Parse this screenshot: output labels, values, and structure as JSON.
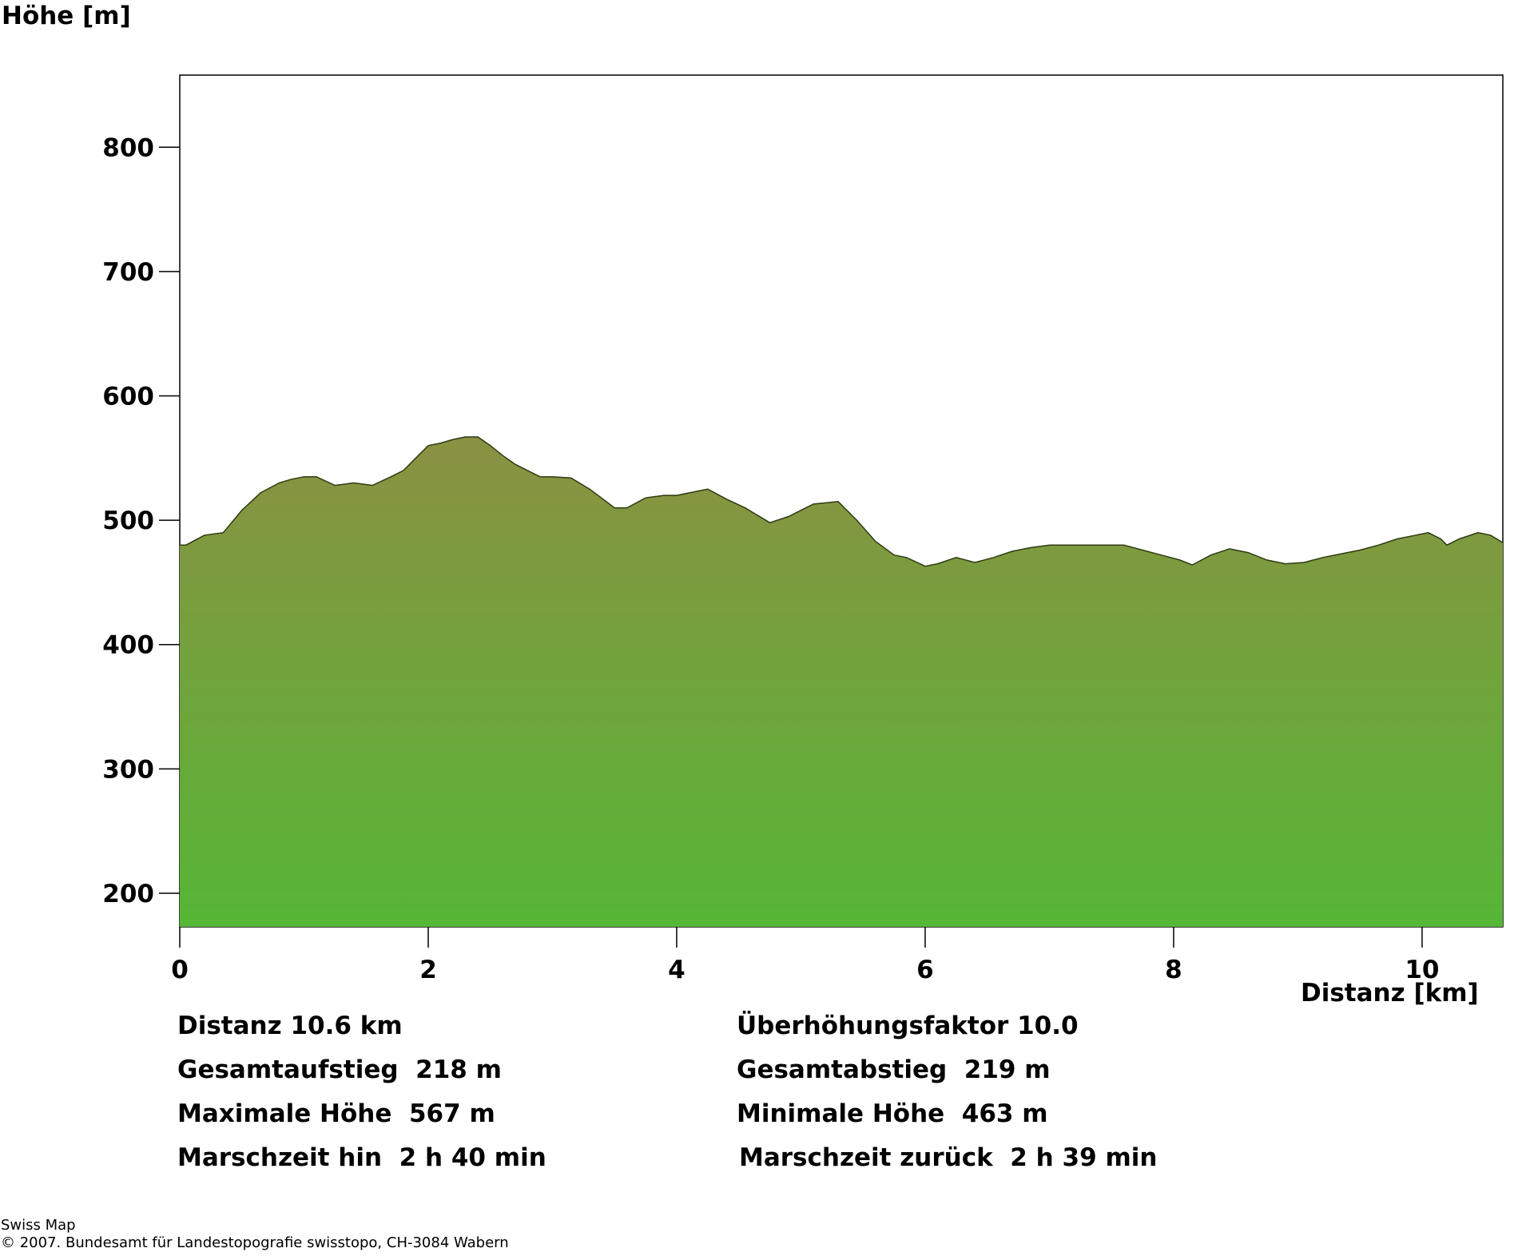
{
  "chart_data": {
    "type": "area",
    "ylabel": "Höhe [m]",
    "xlabel": "Distanz [km]",
    "xlim": [
      0,
      10.65
    ],
    "ylim": [
      173,
      858
    ],
    "yticks": [
      200,
      300,
      400,
      500,
      600,
      700,
      800
    ],
    "xticks": [
      0,
      2,
      4,
      6,
      8,
      10
    ],
    "grid": false,
    "fill_top_color": "#8a9142",
    "fill_bottom_color": "#56b636",
    "line_color": "#2d3a12",
    "x": [
      0,
      0.05,
      0.2,
      0.35,
      0.5,
      0.65,
      0.8,
      0.9,
      1.0,
      1.1,
      1.25,
      1.4,
      1.55,
      1.7,
      1.8,
      1.9,
      2.0,
      2.1,
      2.2,
      2.3,
      2.4,
      2.5,
      2.6,
      2.7,
      2.8,
      2.9,
      3.0,
      3.15,
      3.3,
      3.5,
      3.6,
      3.75,
      3.9,
      4.0,
      4.1,
      4.25,
      4.4,
      4.55,
      4.75,
      4.9,
      5.1,
      5.3,
      5.45,
      5.6,
      5.75,
      5.85,
      6.0,
      6.1,
      6.25,
      6.4,
      6.55,
      6.7,
      6.85,
      7.0,
      7.15,
      7.3,
      7.45,
      7.6,
      7.75,
      7.9,
      8.05,
      8.15,
      8.3,
      8.45,
      8.6,
      8.75,
      8.9,
      9.05,
      9.2,
      9.35,
      9.5,
      9.65,
      9.8,
      9.95,
      10.05,
      10.15,
      10.2,
      10.3,
      10.45,
      10.55,
      10.65
    ],
    "values": [
      480,
      480,
      488,
      490,
      508,
      522,
      530,
      533,
      535,
      535,
      528,
      530,
      528,
      535,
      540,
      550,
      560,
      562,
      565,
      567,
      567,
      560,
      552,
      545,
      540,
      535,
      535,
      534,
      525,
      510,
      510,
      518,
      520,
      520,
      522,
      525,
      517,
      510,
      498,
      503,
      513,
      515,
      500,
      483,
      472,
      470,
      463,
      465,
      470,
      466,
      470,
      475,
      478,
      480,
      480,
      480,
      480,
      480,
      476,
      472,
      468,
      464,
      472,
      477,
      474,
      468,
      465,
      466,
      470,
      473,
      476,
      480,
      485,
      488,
      490,
      485,
      480,
      485,
      490,
      488,
      482
    ]
  },
  "stats": {
    "distance": "Distanz 10.6 km",
    "exaggeration": "Überhöhungsfaktor 10.0",
    "ascent": "Gesamtaufstieg  218 m",
    "descent": "Gesamtabstieg  219 m",
    "max_height": "Maximale Höhe  567 m",
    "min_height": "Minimale Höhe  463 m",
    "time_there": "Marschzeit hin  2 h 40 min",
    "time_back": "Marschzeit zurück  2 h 39 min"
  },
  "credit": {
    "line1": "Swiss Map",
    "line2": "© 2007. Bundesamt für Landestopografie swisstopo, CH-3084 Wabern"
  }
}
